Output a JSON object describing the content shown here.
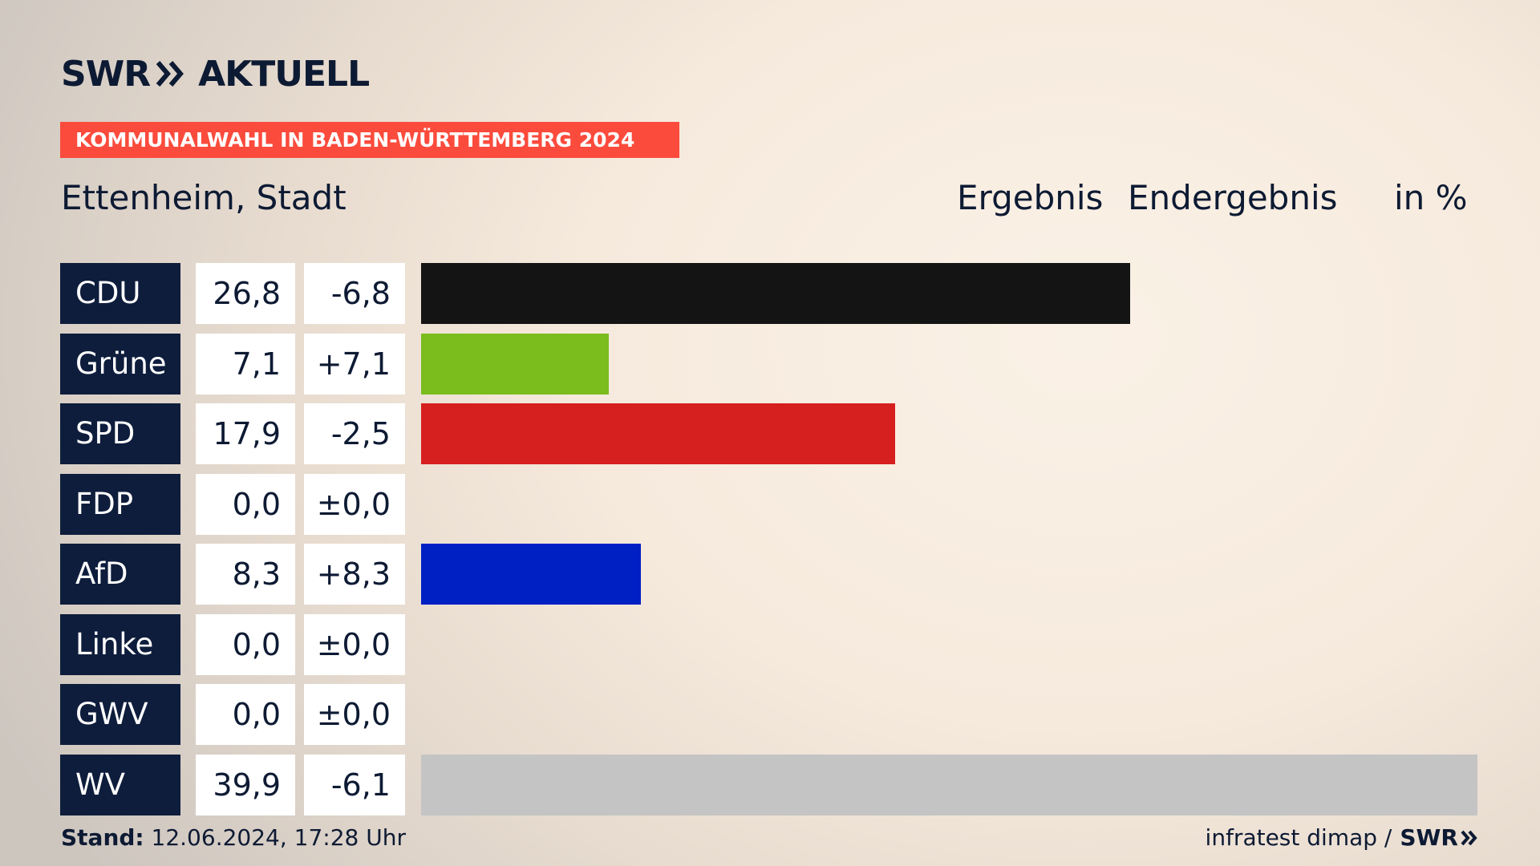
{
  "header": {
    "brand_left": "SWR",
    "brand_right": "AKTUELL",
    "banner": "KOMMUNALWAHL IN BADEN-WÜRTTEMBERG 2024",
    "place": "Ettenheim, Stadt",
    "col_result": "Ergebnis",
    "col_status": "Endergebnis",
    "col_unit": "in %"
  },
  "chart_data": {
    "type": "bar",
    "orientation": "horizontal",
    "unit": "%",
    "xlim": [
      0,
      40
    ],
    "categories": [
      "CDU",
      "Grüne",
      "SPD",
      "FDP",
      "AfD",
      "Linke",
      "GWV",
      "WV"
    ],
    "values": [
      26.8,
      7.1,
      17.9,
      0.0,
      8.3,
      0.0,
      0.0,
      39.9
    ],
    "value_labels": [
      "26,8",
      "7,1",
      "17,9",
      "0,0",
      "8,3",
      "0,0",
      "0,0",
      "39,9"
    ],
    "diff_labels": [
      "-6,8",
      "+7,1",
      "-2,5",
      "±0,0",
      "+8,3",
      "±0,0",
      "±0,0",
      "-6,1"
    ],
    "colors": [
      "#141414",
      "#7abd1d",
      "#d61f1f",
      "#f5d300",
      "#0020c4",
      "#b0184b",
      "#c4c4c4",
      "#c4c4c4"
    ]
  },
  "footer": {
    "stand_label": "Stand:",
    "stand_value": "12.06.2024, 17:28 Uhr",
    "source": "infratest dimap /",
    "source_brand": "SWR"
  }
}
